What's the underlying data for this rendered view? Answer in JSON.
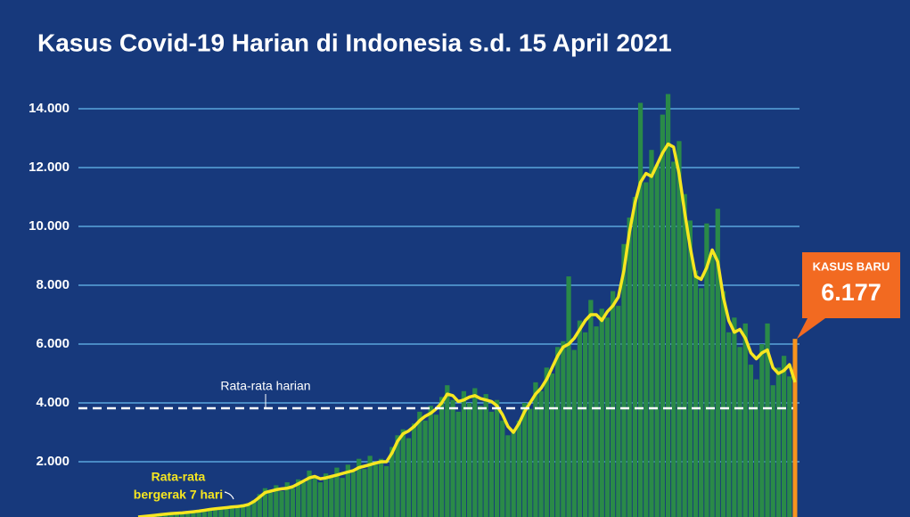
{
  "chart_data": {
    "type": "bar",
    "title": "Kasus Covid-19 Harian di Indonesia s.d. 15 April 2021",
    "categories": [
      null,
      null,
      null,
      null,
      null,
      null,
      null,
      null,
      null,
      null,
      null,
      null,
      null,
      null,
      null,
      null,
      null,
      null,
      null,
      null,
      null,
      null,
      null,
      null,
      null,
      null,
      null,
      null,
      null,
      null,
      null,
      null,
      null,
      null,
      null,
      null,
      null,
      null,
      null,
      null,
      null,
      null,
      null,
      null,
      null,
      null,
      null,
      null,
      null,
      null,
      null,
      null,
      null,
      null,
      null,
      null,
      null,
      null,
      null,
      null,
      null,
      null,
      null,
      null,
      null,
      null,
      null,
      null,
      null,
      null,
      null,
      null,
      null,
      null,
      null,
      null,
      null,
      null,
      null,
      null,
      null,
      null,
      null,
      null,
      null,
      null,
      null,
      null,
      null,
      null,
      null,
      null,
      null,
      null,
      null,
      null,
      null,
      null,
      null,
      null,
      null,
      null,
      null,
      null,
      null,
      null,
      null,
      null,
      null,
      null,
      null,
      null,
      null,
      null,
      null,
      null,
      null,
      null,
      null,
      null
    ],
    "series": [
      {
        "type": "bar",
        "color": "#2a8a48",
        "last_color": "#f7941d",
        "values": [
          110,
          150,
          130,
          210,
          180,
          260,
          200,
          300,
          240,
          330,
          280,
          360,
          300,
          420,
          390,
          460,
          410,
          520,
          430,
          560,
          520,
          700,
          900,
          1100,
          950,
          1200,
          1000,
          1300,
          1100,
          1400,
          1300,
          1700,
          1450,
          1300,
          1600,
          1500,
          1800,
          1450,
          1900,
          1650,
          2100,
          1750,
          2200,
          1900,
          2100,
          1850,
          2500,
          2900,
          3100,
          2800,
          3300,
          3700,
          3400,
          3900,
          3600,
          4200,
          4600,
          4100,
          3700,
          4400,
          4000,
          4500,
          3900,
          4300,
          3700,
          4100,
          3400,
          2900,
          3100,
          3400,
          4000,
          3800,
          4700,
          4400,
          5200,
          5000,
          5900,
          6100,
          8300,
          5800,
          6800,
          6400,
          7500,
          6600,
          7200,
          6900,
          7800,
          7300,
          9400,
          10300,
          11000,
          14200,
          11500,
          12600,
          12100,
          13800,
          14500,
          12200,
          12900,
          11100,
          10200,
          8500,
          7900,
          10100,
          9000,
          10600,
          7800,
          6400,
          6900,
          5900,
          6700,
          5300,
          4800,
          6000,
          6700,
          4600,
          5200,
          5600,
          4900,
          6177
        ],
        "value_labels": [
          null,
          null,
          null,
          null,
          null,
          null,
          null,
          null,
          null,
          null,
          null,
          null,
          null,
          null,
          null,
          null,
          null,
          null,
          null,
          null,
          null,
          null,
          null,
          null,
          null,
          null,
          null,
          null,
          null,
          null,
          null,
          null,
          null,
          null,
          null,
          null,
          null,
          null,
          null,
          null,
          null,
          null,
          null,
          null,
          null,
          null,
          null,
          null,
          null,
          null,
          null,
          null,
          null,
          null,
          null,
          null,
          null,
          null,
          null,
          null,
          null,
          null,
          null,
          null,
          null,
          null,
          null,
          null,
          null,
          null,
          null,
          null,
          null,
          null,
          null,
          null,
          null,
          null,
          null,
          null,
          null,
          null,
          null,
          null,
          null,
          null,
          null,
          null,
          null,
          null,
          null,
          null,
          null,
          null,
          null,
          null,
          null,
          null,
          null,
          null,
          null,
          null,
          null,
          null,
          null,
          null,
          null,
          null,
          null,
          null,
          null,
          null,
          null,
          null,
          null,
          null,
          null,
          null,
          null,
          "6.177"
        ]
      },
      {
        "type": "line",
        "color": "#f6e620",
        "values": [
          120,
          140,
          160,
          180,
          200,
          220,
          240,
          250,
          260,
          280,
          300,
          320,
          350,
          380,
          400,
          420,
          440,
          460,
          480,
          500,
          550,
          650,
          800,
          950,
          1000,
          1050,
          1080,
          1100,
          1150,
          1250,
          1350,
          1450,
          1500,
          1420,
          1450,
          1500,
          1550,
          1600,
          1650,
          1700,
          1800,
          1850,
          1900,
          1950,
          2000,
          2000,
          2300,
          2700,
          2950,
          3050,
          3200,
          3400,
          3550,
          3650,
          3800,
          4000,
          4300,
          4250,
          4050,
          4100,
          4200,
          4250,
          4150,
          4100,
          4050,
          3900,
          3600,
          3200,
          3000,
          3300,
          3700,
          4000,
          4300,
          4500,
          4800,
          5200,
          5600,
          5900,
          6000,
          6200,
          6500,
          6800,
          7000,
          7000,
          6800,
          7100,
          7300,
          7600,
          8500,
          9800,
          10800,
          11500,
          11800,
          11700,
          12100,
          12500,
          12800,
          12700,
          11800,
          10500,
          9300,
          8300,
          8200,
          8600,
          9200,
          8800,
          7600,
          6800,
          6400,
          6500,
          6200,
          5700,
          5500,
          5700,
          5800,
          5200,
          5000,
          5100,
          5300,
          4700
        ]
      }
    ],
    "ylim": [
      0,
      14000
    ],
    "yticks": [
      {
        "value": 2000,
        "label": "2.000"
      },
      {
        "value": 4000,
        "label": "4.000"
      },
      {
        "value": 6000,
        "label": "6.000"
      },
      {
        "value": 8000,
        "label": "8.000"
      },
      {
        "value": 10000,
        "label": "10.000"
      },
      {
        "value": 12000,
        "label": "12.000"
      },
      {
        "value": 14000,
        "label": "14.000"
      }
    ],
    "grid": true,
    "grid_color": "#5aa6dc",
    "mean_line": {
      "value": 3820,
      "label": "Rata-rata harian",
      "color": "#ffffff"
    },
    "line_annotation": [
      "Rata-rata",
      "bergerak 7 hari"
    ],
    "callout": {
      "title": "KASUS BARU",
      "color": "#f26a21"
    }
  }
}
